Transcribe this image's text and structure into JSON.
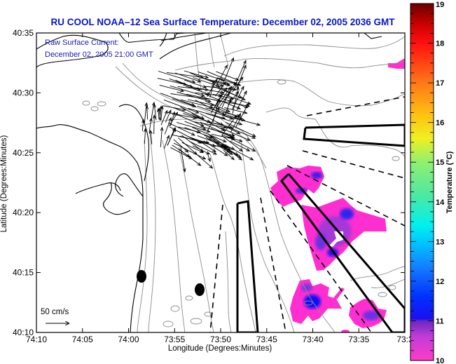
{
  "title": "RU COOL   NOAA–12  Sea Surface Temperature:  December 02, 2005 2036 GMT",
  "overlay": {
    "line1": "Raw Surface Current:",
    "line2": "December 02, 2005 21:00 GMT"
  },
  "scale_arrow": {
    "label": "50 cm/s",
    "speed_cm_s": 50
  },
  "chart_data": {
    "type": "heatmap",
    "title": "RU COOL NOAA-12 Sea Surface Temperature: December 02, 2005 2036 GMT",
    "xlabel": "Longitude (Degrees:Minutes)",
    "ylabel": "Latitude (Degrees:Minutes)",
    "x_ticks": [
      "74:10",
      "74:05",
      "74:00",
      "73:55",
      "73:50",
      "73:45",
      "73:40",
      "73:35",
      "73:3"
    ],
    "y_ticks": [
      "40:10",
      "40:15",
      "40:20",
      "40:25",
      "40:30",
      "40:35"
    ],
    "xlim_minutes_west": [
      70,
      30
    ],
    "ylim_minutes_north": [
      10,
      35
    ],
    "colorbar": {
      "label": "Temperature (°C)",
      "ticks": [
        "10",
        "11",
        "12",
        "13",
        "14",
        "15",
        "16",
        "17",
        "18",
        "19"
      ],
      "range": [
        10,
        19
      ],
      "stops": [
        {
          "v": 10,
          "c": "#ff3cc8"
        },
        {
          "v": 10.6,
          "c": "#c23cd8"
        },
        {
          "v": 11,
          "c": "#6a28c0"
        },
        {
          "v": 11.05,
          "c": "#1a10f0"
        },
        {
          "v": 11.6,
          "c": "#0030ff"
        },
        {
          "v": 12.3,
          "c": "#1478ff"
        },
        {
          "v": 13,
          "c": "#00c8ff"
        },
        {
          "v": 13.4,
          "c": "#00f0f0"
        },
        {
          "v": 14.2,
          "c": "#50e8a0"
        },
        {
          "v": 15,
          "c": "#90f070"
        },
        {
          "v": 15.6,
          "c": "#f0f020"
        },
        {
          "v": 16.2,
          "c": "#ffc010"
        },
        {
          "v": 17,
          "c": "#ff7818"
        },
        {
          "v": 18,
          "c": "#ff1010"
        },
        {
          "v": 18.5,
          "c": "#c80000"
        },
        {
          "v": 19,
          "c": "#6a0000"
        }
      ]
    },
    "sst_patches": [
      {
        "name": "sst-patch-north-channel",
        "lon": 73.71,
        "lat": 40.2,
        "temp": 10.4
      },
      {
        "name": "sst-patch-central",
        "lon": 73.62,
        "lat": 40.17,
        "temp": 10.8
      },
      {
        "name": "sst-patch-south-west",
        "lon": 73.62,
        "lat": 40.1,
        "temp": 10.7
      },
      {
        "name": "sst-patch-south-east",
        "lon": 73.55,
        "lat": 40.07,
        "temp": 10.6
      },
      {
        "name": "sst-patch-top-right",
        "lon": 73.51,
        "lat": 40.5,
        "temp": 10.2
      }
    ],
    "buoys": [
      {
        "name": "buoy-west",
        "lon_min": 58.8,
        "lat_min": 14.7
      },
      {
        "name": "buoy-east",
        "lon_min": 52.2,
        "lat_min": 13.5
      }
    ]
  },
  "colors": {
    "title": "#0a16c8",
    "coast": "#000000",
    "bathymetry": "#8c8c8c",
    "vectors": "#000000"
  }
}
